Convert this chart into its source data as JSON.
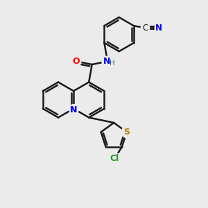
{
  "bg_color": "#ebebeb",
  "bond_color": "#1a1a1a",
  "lw": 1.8,
  "xlim": [
    0,
    10
  ],
  "ylim": [
    0,
    10
  ],
  "figsize": [
    3.0,
    3.0
  ],
  "dpi": 100
}
